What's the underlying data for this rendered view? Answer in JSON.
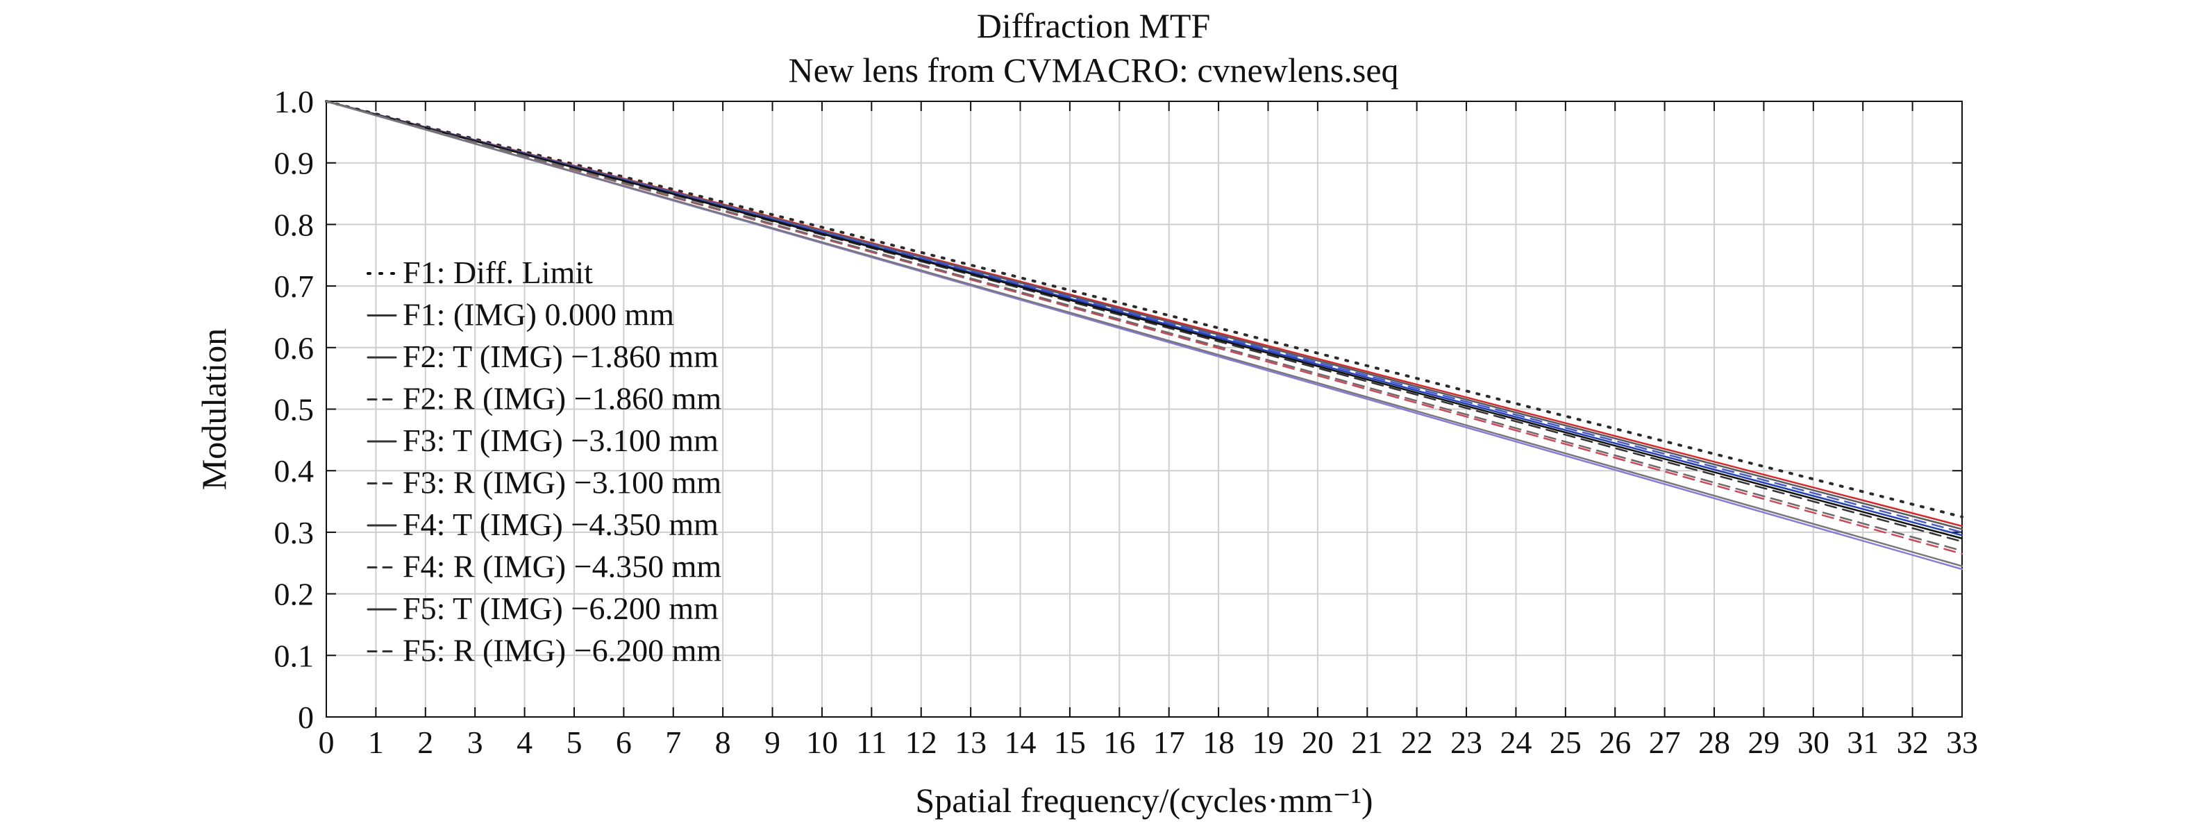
{
  "chart_data": {
    "type": "line",
    "title": "Diffraction MTF",
    "subtitle": "New lens from CVMACRO: cvnewlens.seq",
    "xlabel": "Spatial frequency/(cycles·mm⁻¹)",
    "ylabel": "Modulation",
    "xlim": [
      0,
      33
    ],
    "ylim": [
      0,
      1.0
    ],
    "x_ticks": [
      0,
      1,
      2,
      3,
      4,
      5,
      6,
      7,
      8,
      9,
      10,
      11,
      12,
      13,
      14,
      15,
      16,
      17,
      18,
      19,
      20,
      21,
      22,
      23,
      24,
      25,
      26,
      27,
      28,
      29,
      30,
      31,
      32,
      33
    ],
    "y_ticks": [
      0,
      0.1,
      0.2,
      0.3,
      0.4,
      0.5,
      0.6,
      0.7,
      0.8,
      0.9,
      1.0
    ],
    "y_tick_labels": [
      "0",
      "0.1",
      "0.2",
      "0.3",
      "0.4",
      "0.5",
      "0.6",
      "0.7",
      "0.8",
      "0.9",
      "1.0"
    ],
    "grid": true,
    "legend_position": "left",
    "series": [
      {
        "name": "F1: Diff. Limit",
        "style": "dotted",
        "color": "#2a2a2a",
        "x": [
          0,
          33
        ],
        "y": [
          1.0,
          0.325
        ]
      },
      {
        "name": "F1: (IMG) 0.000 mm",
        "style": "solid",
        "color": "#d62728",
        "x": [
          0,
          33
        ],
        "y": [
          1.0,
          0.31
        ]
      },
      {
        "name": "F2: T (IMG) −1.860 mm",
        "style": "solid",
        "color": "#5a5a5a",
        "x": [
          0,
          33
        ],
        "y": [
          1.0,
          0.305
        ]
      },
      {
        "name": "F2: R (IMG) −1.860 mm",
        "style": "dashed",
        "color": "#4a5ac8",
        "x": [
          0,
          33
        ],
        "y": [
          1.0,
          0.3
        ]
      },
      {
        "name": "F3: T (IMG) −3.100 mm",
        "style": "solid",
        "color": "#1f3fbf",
        "x": [
          0,
          33
        ],
        "y": [
          1.0,
          0.295
        ]
      },
      {
        "name": "F3: R (IMG) −3.100 mm",
        "style": "dashed",
        "color": "#333333",
        "x": [
          0,
          33
        ],
        "y": [
          1.0,
          0.285
        ]
      },
      {
        "name": "F4: T (IMG) −4.350 mm",
        "style": "solid",
        "color": "#111111",
        "x": [
          0,
          33
        ],
        "y": [
          1.0,
          0.29
        ]
      },
      {
        "name": "F4: R (IMG) −4.350 mm",
        "style": "dashed",
        "color": "#d1475a",
        "x": [
          0,
          33
        ],
        "y": [
          1.0,
          0.265
        ]
      },
      {
        "name": "F5: T (IMG) −6.200 mm",
        "style": "solid",
        "color": "#8a7ad8",
        "x": [
          0,
          33
        ],
        "y": [
          1.0,
          0.24
        ]
      },
      {
        "name": "F5: R (IMG) −6.200 mm",
        "style": "dashed",
        "color": "#6a6a6a",
        "x": [
          0,
          33
        ],
        "y": [
          1.0,
          0.27
        ]
      }
    ],
    "extra_curves": [
      {
        "style": "solid",
        "color": "#777777",
        "x": [
          0,
          33
        ],
        "y": [
          1.0,
          0.245
        ]
      }
    ]
  }
}
